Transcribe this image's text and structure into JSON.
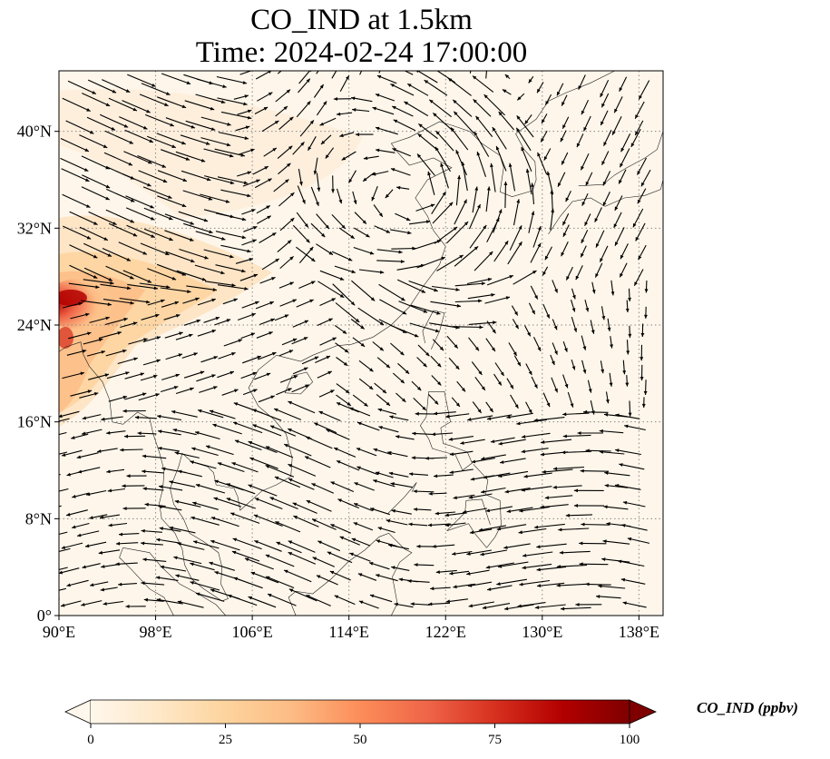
{
  "title": {
    "line1": "CO_IND at 1.5km",
    "line2": "Time: 2024-02-24 17:00:00"
  },
  "map": {
    "extent": {
      "lon_min": 90,
      "lon_max": 140,
      "lat_min": 0,
      "lat_max": 45
    },
    "lon_ticks": [
      90,
      98,
      106,
      114,
      122,
      130,
      138
    ],
    "lon_tick_labels": [
      "90°E",
      "98°E",
      "106°E",
      "114°E",
      "122°E",
      "130°E",
      "138°E"
    ],
    "lat_ticks": [
      0,
      8,
      16,
      24,
      32,
      40
    ],
    "lat_tick_labels": [
      "0°",
      "8°N",
      "16°N",
      "24°N",
      "32°N",
      "40°N"
    ],
    "gridlines": "dotted",
    "field": "CO_IND concentration with wind vectors",
    "high_concentration_region": "western edge near 90-95°E, 17-30°N"
  },
  "colorbar": {
    "label": "CO_IND (ppbv)",
    "ticks": [
      0,
      25,
      50,
      75,
      100
    ],
    "tick_labels": [
      "0",
      "25",
      "50",
      "75",
      "100"
    ],
    "colormap": "OrRd",
    "colors": [
      "#fff7ec",
      "#fee8c8",
      "#fdd49e",
      "#fdbb84",
      "#fc8d59",
      "#ef6548",
      "#d7301f",
      "#b30000",
      "#7f0000"
    ],
    "extend": "both"
  }
}
